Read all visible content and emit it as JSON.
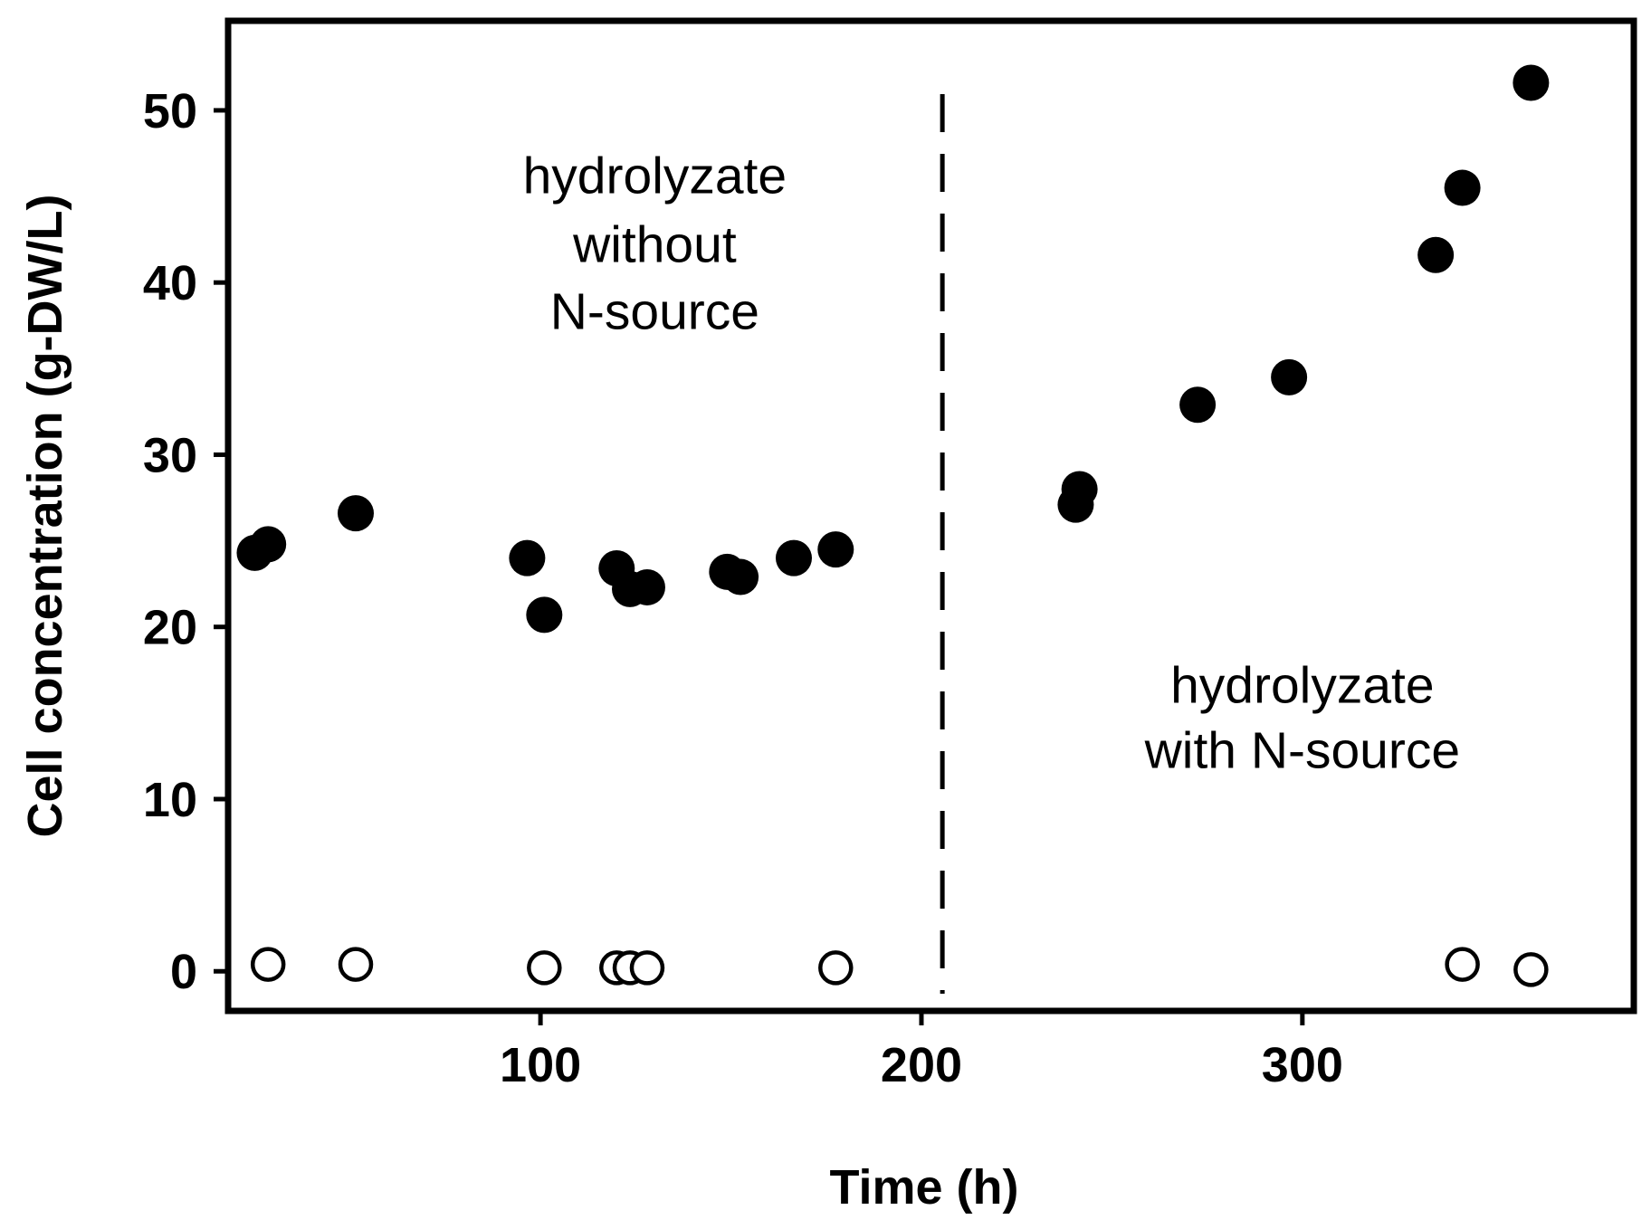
{
  "chart_data": {
    "type": "scatter",
    "title": "",
    "xlabel": "Time (h)",
    "ylabel": "Cell concentration (g-DW/L)",
    "xlim": [
      18,
      387
    ],
    "ylim": [
      -2.3,
      55.2
    ],
    "xticks": [
      100,
      200,
      300
    ],
    "yticks": [
      0,
      10,
      20,
      30,
      40,
      50
    ],
    "grid": false,
    "series": [
      {
        "name": "filled",
        "marker": "filled-circle",
        "color": "#000000",
        "points": [
          {
            "x": 25,
            "y": 24.3
          },
          {
            "x": 28.5,
            "y": 24.8
          },
          {
            "x": 51.5,
            "y": 26.6
          },
          {
            "x": 96.5,
            "y": 24.0
          },
          {
            "x": 101,
            "y": 20.7
          },
          {
            "x": 120,
            "y": 23.4
          },
          {
            "x": 123.5,
            "y": 22.2
          },
          {
            "x": 128,
            "y": 22.3
          },
          {
            "x": 149,
            "y": 23.2
          },
          {
            "x": 152.5,
            "y": 22.9
          },
          {
            "x": 166.5,
            "y": 24.0
          },
          {
            "x": 177.5,
            "y": 24.5
          },
          {
            "x": 240.5,
            "y": 27.1
          },
          {
            "x": 241.5,
            "y": 28.0
          },
          {
            "x": 272.5,
            "y": 32.9
          },
          {
            "x": 296.5,
            "y": 34.5
          },
          {
            "x": 335,
            "y": 41.6
          },
          {
            "x": 342,
            "y": 45.5
          },
          {
            "x": 360,
            "y": 51.6
          }
        ]
      },
      {
        "name": "open",
        "marker": "open-circle",
        "color": "#000000",
        "points": [
          {
            "x": 28.5,
            "y": 0.4
          },
          {
            "x": 51.5,
            "y": 0.4
          },
          {
            "x": 101,
            "y": 0.2
          },
          {
            "x": 120,
            "y": 0.2
          },
          {
            "x": 123.5,
            "y": 0.2
          },
          {
            "x": 128,
            "y": 0.2
          },
          {
            "x": 177.5,
            "y": 0.2
          },
          {
            "x": 342,
            "y": 0.4
          },
          {
            "x": 360,
            "y": 0.1
          }
        ]
      }
    ],
    "vline": {
      "x": 205.5,
      "style": "dashed"
    },
    "annotations": [
      {
        "lines": [
          "hydrolyzate",
          "without",
          "N-source"
        ],
        "x": 130,
        "y": [
          45.2,
          41.2,
          37.3
        ]
      },
      {
        "lines": [
          "hydrolyzate",
          "with N-source"
        ],
        "x": 300,
        "y": [
          15.6,
          11.8
        ]
      }
    ]
  }
}
